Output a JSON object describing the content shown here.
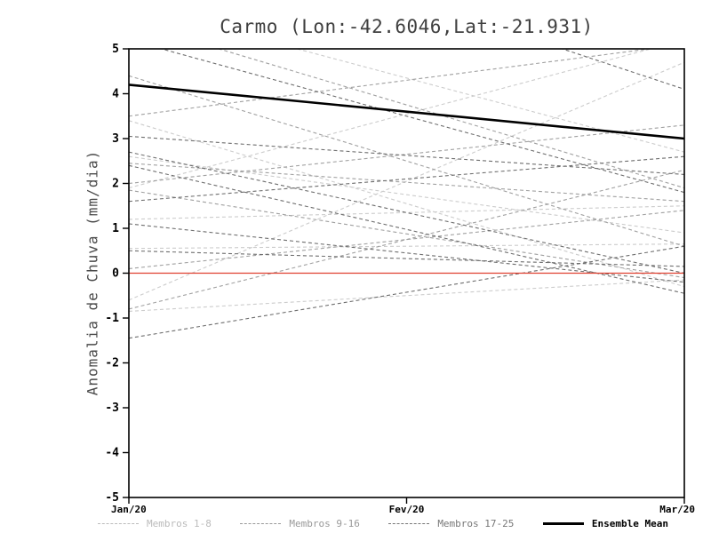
{
  "chart_data": {
    "type": "line",
    "title": "Carmo (Lon:-42.6046,Lat:-21.931)",
    "ylabel": "Anomalia de Chuva (mm/dia)",
    "xlabel": "",
    "x_categories": [
      "Jan/20",
      "Fev/20",
      "Mar/20"
    ],
    "ylim": [
      -5,
      5
    ],
    "ytick_step": 1,
    "grid": false,
    "legend_position": "bottom",
    "zero_line": {
      "y": 0,
      "color": "#e04030"
    },
    "ensemble_mean": {
      "name": "Ensemble Mean",
      "color": "#000000",
      "width": 2.6,
      "values": [
        4.2,
        3.6,
        3.0
      ]
    },
    "groups": [
      {
        "name": "Membros 1-8",
        "color": "#cccccc",
        "dash": "4 3",
        "members": [
          [
            3.4,
            -0.3
          ],
          [
            1.9,
            5.2
          ],
          [
            1.2,
            1.5
          ],
          [
            0.55,
            0.65
          ],
          [
            -0.6,
            4.7
          ],
          [
            -0.85,
            -0.15
          ],
          [
            2.6,
            0.9
          ],
          [
            6.0,
            2.7
          ]
        ]
      },
      {
        "name": "Membros 9-16",
        "color": "#a0a0a0",
        "dash": "4 3",
        "members": [
          [
            5.6,
            1.9
          ],
          [
            3.5,
            5.1
          ],
          [
            2.0,
            3.3
          ],
          [
            1.85,
            -0.1
          ],
          [
            0.1,
            1.4
          ],
          [
            -0.8,
            2.3
          ],
          [
            2.45,
            1.6
          ],
          [
            4.4,
            0.6
          ]
        ]
      },
      {
        "name": "Membros 17-25",
        "color": "#6e6e6e",
        "dash": "4 3",
        "members": [
          [
            5.2,
            1.8
          ],
          [
            2.7,
            0.0
          ],
          [
            2.4,
            -0.45
          ],
          [
            -1.45,
            0.6
          ],
          [
            1.1,
            -0.2
          ],
          [
            0.5,
            0.15
          ],
          [
            3.05,
            2.2
          ],
          [
            8.2,
            4.1
          ],
          [
            1.6,
            2.6
          ]
        ]
      }
    ],
    "legend": [
      {
        "label": "Membros 1-8",
        "color": "#bbbbbb",
        "style": "dashed"
      },
      {
        "label": "Membros 9-16",
        "color": "#999999",
        "style": "dashed"
      },
      {
        "label": "Membros 17-25",
        "color": "#777777",
        "style": "dashed"
      },
      {
        "label": "Ensemble Mean",
        "color": "#000000",
        "style": "solid"
      }
    ]
  }
}
